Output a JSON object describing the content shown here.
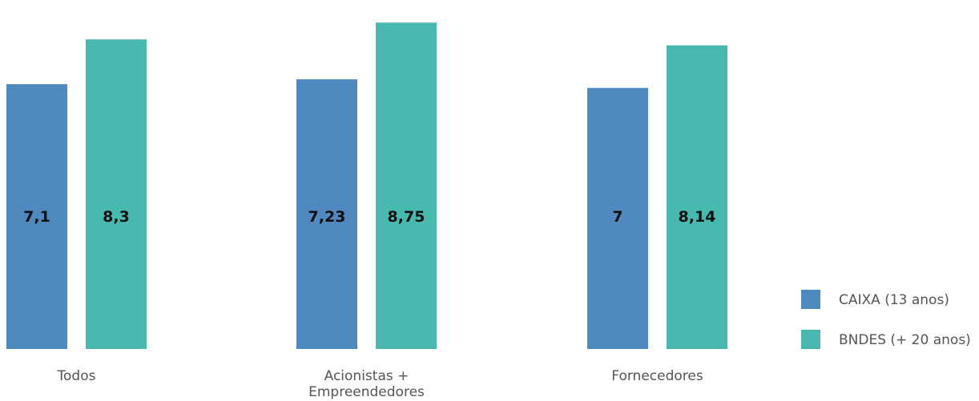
{
  "chart_data": {
    "type": "bar",
    "categories": [
      "Todos",
      "Acionistas + Empreendedores",
      "Fornecedores"
    ],
    "category_label_lines": [
      [
        "Todos"
      ],
      [
        "Acionistas +",
        "Empreendedores"
      ],
      [
        "Fornecedores"
      ]
    ],
    "series": [
      {
        "name": "CAIXA (13 anos)",
        "color": "#5088c0",
        "values": [
          7.1,
          7.23,
          7
        ],
        "labels": [
          "7,1",
          "7,23",
          "7"
        ]
      },
      {
        "name": "BNDES (+ 20 anos)",
        "color": "#48b9ae",
        "values": [
          8.3,
          8.75,
          8.14
        ],
        "labels": [
          "8,3",
          "8,75",
          "8,14"
        ]
      }
    ],
    "ylim": [
      0,
      9.2
    ],
    "grid": false,
    "legend_position": "bottom-right",
    "title": "",
    "xlabel": "",
    "ylabel": ""
  }
}
